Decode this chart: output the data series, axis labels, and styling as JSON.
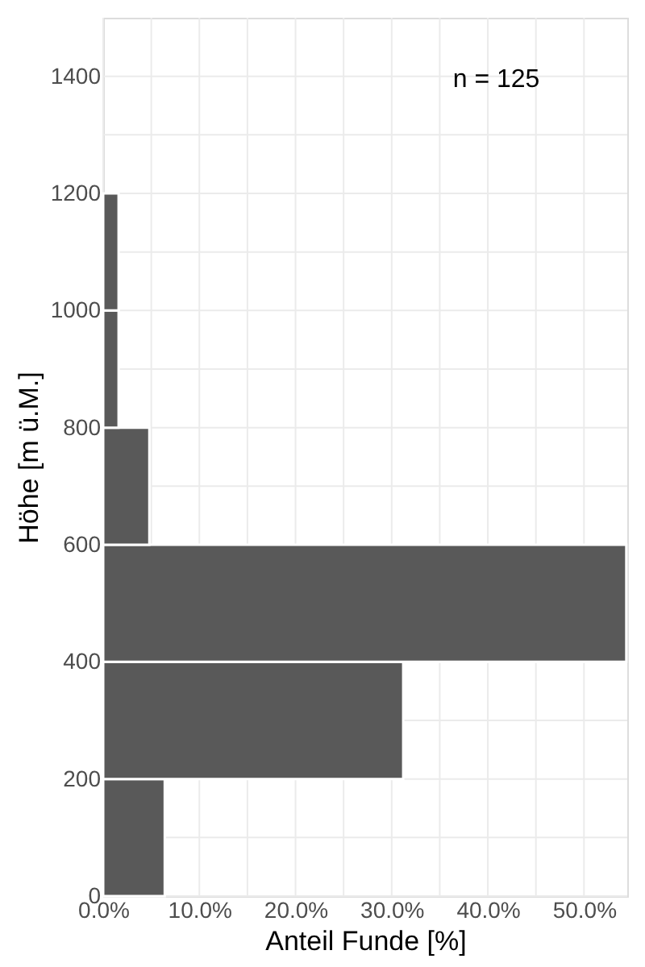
{
  "chart_data": {
    "type": "histogram",
    "orientation": "horizontal",
    "bins": [
      0,
      200,
      400,
      600,
      800,
      1000,
      1200
    ],
    "values": [
      6.4,
      31.2,
      54.4,
      4.8,
      1.6,
      1.6
    ],
    "color": "#595959",
    "xlabel": "Anteil Funde [%]",
    "ylabel": "Höhe [m ü.M.]",
    "xlim": [
      0,
      54.5
    ],
    "ylim": [
      0,
      1500
    ],
    "xticks": [
      {
        "value": 0,
        "label": "0.0%"
      },
      {
        "value": 5,
        "label": null
      },
      {
        "value": 10,
        "label": "10.0%"
      },
      {
        "value": 15,
        "label": null
      },
      {
        "value": 20,
        "label": "20.0%"
      },
      {
        "value": 25,
        "label": null
      },
      {
        "value": 30,
        "label": "30.0%"
      },
      {
        "value": 35,
        "label": null
      },
      {
        "value": 40,
        "label": "40.0%"
      },
      {
        "value": 45,
        "label": null
      },
      {
        "value": 50,
        "label": "50.0%"
      }
    ],
    "yticks": [
      0,
      {
        "value": 100,
        "label": null
      },
      200,
      {
        "value": 300,
        "label": null
      },
      400,
      600,
      {
        "value": 700,
        "label": null
      },
      800,
      {
        "value": 900,
        "label": null
      },
      1000,
      {
        "value": 1100,
        "label": null
      },
      1200,
      {
        "value": 1300,
        "label": null
      },
      1400
    ],
    "grid": true,
    "annotations": [
      "n = 125"
    ]
  }
}
